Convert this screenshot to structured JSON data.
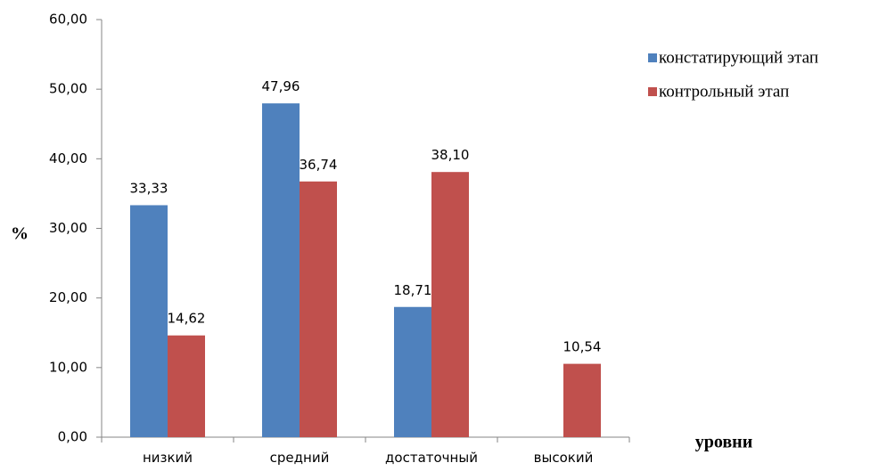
{
  "chart_data": {
    "type": "bar",
    "categories": [
      "низкий",
      "средний",
      "достаточный",
      "высокий"
    ],
    "series": [
      {
        "name": "констатирующий этап",
        "color": "#4F81BD",
        "values": [
          33.33,
          47.96,
          18.71,
          null
        ],
        "labels": [
          "33,33",
          "47,96",
          "18,71",
          ""
        ]
      },
      {
        "name": "контрольный этап",
        "color": "#C0504D",
        "values": [
          14.62,
          36.74,
          38.1,
          10.54
        ],
        "labels": [
          "14,62",
          "36,74",
          "38,10",
          "10,54"
        ]
      }
    ],
    "ylabel": "%",
    "xlabel": "уровни",
    "ylim": [
      0,
      60
    ],
    "yticks": [
      0,
      10,
      20,
      30,
      40,
      50,
      60
    ],
    "ytick_labels": [
      "0,00",
      "10,00",
      "20,00",
      "30,00",
      "40,00",
      "50,00",
      "60,00"
    ],
    "grid": false,
    "legend_position": "top-right"
  }
}
